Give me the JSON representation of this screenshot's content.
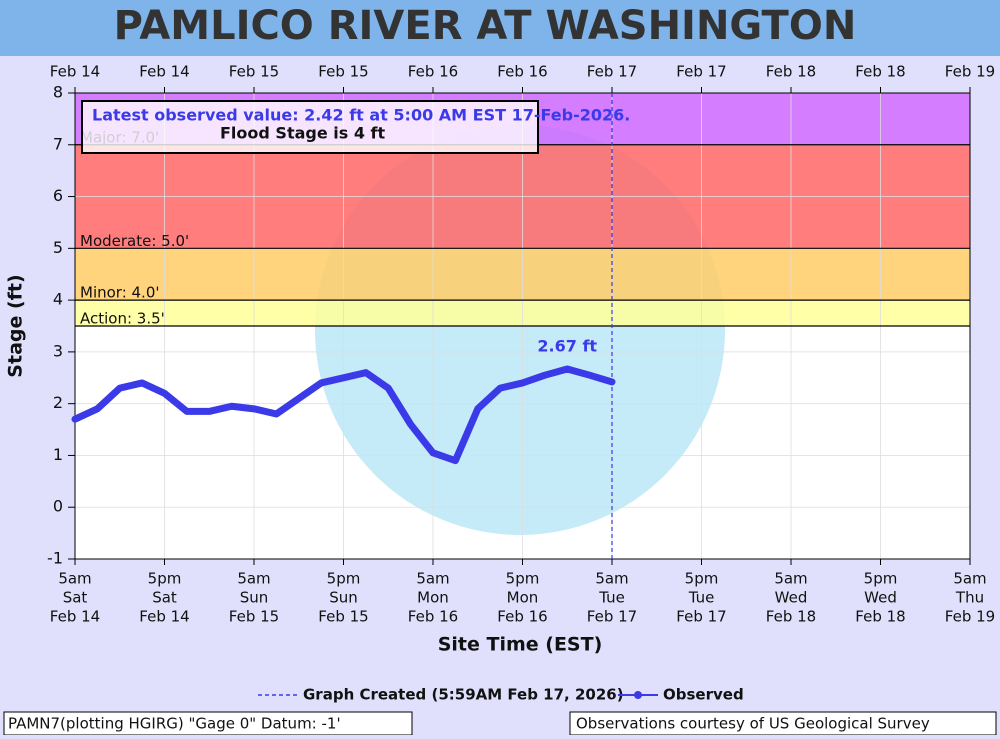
{
  "chart_data": {
    "type": "line",
    "title": "PAMLICO RIVER AT WASHINGTON",
    "x_label": "Site Time (EST)",
    "y_label": "Stage (ft)",
    "annotation": "Latest observed value: 2.42 ft at 5:00 AM EST 17-Feb-2026.",
    "annotation_note": "Flood Stage is 4 ft",
    "peak_label": "2.67 ft",
    "created_label": "Graph Created (5:59AM Feb 17, 2026)",
    "footer_left": "PAMN7(plotting HGIRG) \"Gage 0\" Datum: -1'",
    "footer_right": "Observations courtesy of US Geological Survey",
    "x": [
      "2026-02-14T05:00",
      "2026-02-14T08:00",
      "2026-02-14T11:00",
      "2026-02-14T14:00",
      "2026-02-14T17:00",
      "2026-02-14T20:00",
      "2026-02-14T23:00",
      "2026-02-15T02:00",
      "2026-02-15T05:00",
      "2026-02-15T08:00",
      "2026-02-15T11:00",
      "2026-02-15T14:00",
      "2026-02-15T17:00",
      "2026-02-15T20:00",
      "2026-02-15T23:00",
      "2026-02-16T02:00",
      "2026-02-16T05:00",
      "2026-02-16T08:00",
      "2026-02-16T11:00",
      "2026-02-16T14:00",
      "2026-02-16T17:00",
      "2026-02-16T20:00",
      "2026-02-16T23:00",
      "2026-02-17T02:00",
      "2026-02-17T05:00"
    ],
    "series": [
      {
        "name": "Observed",
        "color": "#3a3ae8",
        "values": [
          1.7,
          1.9,
          2.3,
          2.4,
          2.2,
          1.85,
          1.85,
          1.95,
          1.9,
          1.8,
          2.1,
          2.4,
          2.5,
          2.6,
          2.3,
          1.6,
          1.05,
          0.9,
          1.9,
          2.3,
          2.4,
          2.55,
          2.67,
          2.55,
          2.42
        ]
      }
    ],
    "flood_levels": [
      {
        "name": "Action: 3.5'",
        "value": 3.5,
        "color": "#ffff99"
      },
      {
        "name": "Minor: 4.0'",
        "value": 4,
        "color": "#ffcc66"
      },
      {
        "name": "Moderate: 5.0'",
        "value": 5,
        "color": "#ff6666"
      },
      {
        "name": "Major: 7.0'",
        "value": 7,
        "color": "#cc66ff"
      }
    ],
    "xlim": [
      "2026-02-14T05:00",
      "2026-02-19T05:00"
    ],
    "xticks": [
      {
        "value": "2026-02-14T05:00",
        "label": [
          "5am",
          "Sat",
          "Feb 14"
        ]
      },
      {
        "value": "2026-02-14T17:00",
        "label": [
          "5pm",
          "Sat",
          "Feb 14"
        ]
      },
      {
        "value": "2026-02-15T05:00",
        "label": [
          "5am",
          "Sun",
          "Feb 15"
        ]
      },
      {
        "value": "2026-02-15T17:00",
        "label": [
          "5pm",
          "Sun",
          "Feb 15"
        ]
      },
      {
        "value": "2026-02-16T05:00",
        "label": [
          "5am",
          "Mon",
          "Feb 16"
        ]
      },
      {
        "value": "2026-02-16T17:00",
        "label": [
          "5pm",
          "Mon",
          "Feb 16"
        ]
      },
      {
        "value": "2026-02-17T05:00",
        "label": [
          "5am",
          "Tue",
          "Feb 17"
        ]
      },
      {
        "value": "2026-02-17T17:00",
        "label": [
          "5pm",
          "Tue",
          "Feb 17"
        ]
      },
      {
        "value": "2026-02-18T05:00",
        "label": [
          "5am",
          "Wed",
          "Feb 18"
        ]
      },
      {
        "value": "2026-02-18T17:00",
        "label": [
          "5pm",
          "Wed",
          "Feb 18"
        ]
      },
      {
        "value": "2026-02-19T05:00",
        "label": [
          "5am",
          "Thu",
          "Feb 19"
        ]
      }
    ],
    "ylim": [
      -1,
      8
    ],
    "yticks": [
      -1,
      0,
      1,
      2,
      3,
      4,
      5,
      6,
      7,
      8
    ],
    "grid": true
  }
}
